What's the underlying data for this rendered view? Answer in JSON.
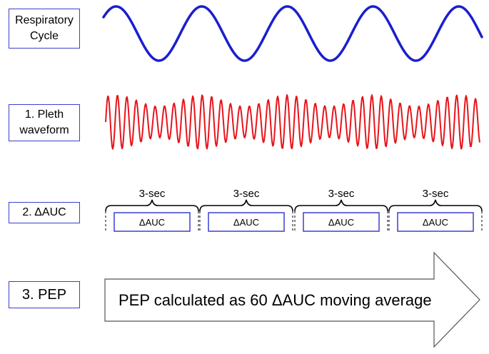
{
  "rows": {
    "respiratory": {
      "line1": "Respiratory",
      "line2": "Cycle"
    },
    "pleth": {
      "line1": "1. Pleth",
      "line2": "waveform"
    },
    "auc": {
      "label": "2. ΔAUC"
    },
    "pep": {
      "label": "3. PEP"
    }
  },
  "segments": [
    {
      "bracket_label": "3-sec",
      "box_label": "ΔAUC"
    },
    {
      "bracket_label": "3-sec",
      "box_label": "ΔAUC"
    },
    {
      "bracket_label": "3-sec",
      "box_label": "ΔAUC"
    },
    {
      "bracket_label": "3-sec",
      "box_label": "ΔAUC"
    }
  ],
  "arrow": {
    "text": "PEP calculated as 60 ΔAUC moving average"
  },
  "colors": {
    "respiratory_wave": "#1a1fcf",
    "pleth_wave": "#e8141b",
    "box_border": "#3b3fcf"
  }
}
